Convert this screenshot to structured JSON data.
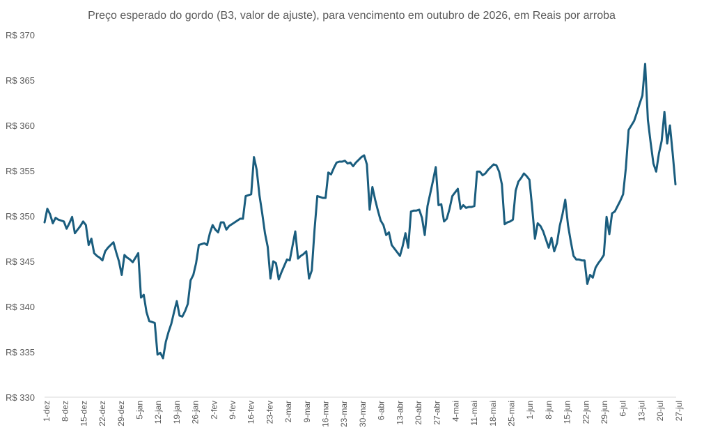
{
  "chart_data": {
    "type": "line",
    "title": "Preço esperado do gordo (B3, valor de ajuste), para vencimento em outubro de 2026, em Reais por arroba",
    "ylim": [
      330,
      370
    ],
    "grid": false,
    "legend": "none",
    "colors": {
      "line": "#1a5d7e",
      "axis": "#d9d9d9",
      "text": "#595959"
    },
    "y_tick_labels": [
      "R$ 330",
      "R$ 335",
      "R$ 340",
      "R$ 345",
      "R$ 350",
      "R$ 355",
      "R$ 360",
      "R$ 365",
      "R$ 370"
    ],
    "y_tick_values": [
      330,
      335,
      340,
      345,
      350,
      355,
      360,
      365,
      370
    ],
    "x_tick_labels": [
      "1-dez",
      "8-dez",
      "15-dez",
      "22-dez",
      "29-dez",
      "5-jan",
      "12-jan",
      "19-jan",
      "26-jan",
      "2-fev",
      "9-fev",
      "16-fev",
      "23-fev",
      "2-mar",
      "9-mar",
      "16-mar",
      "23-mar",
      "30-mar",
      "6-abr",
      "13-abr",
      "20-abr",
      "27-abr",
      "4-mai",
      "11-mai",
      "18-mai",
      "25-mai",
      "1-jun",
      "8-jun",
      "15-jun",
      "22-jun",
      "29-jun",
      "6-jul",
      "13-jul",
      "20-jul",
      "27-jul"
    ],
    "series": [
      {
        "values": [
          349.3,
          350.8,
          350.2,
          349.2,
          349.8,
          349.6,
          349.5,
          349.4,
          348.6,
          349.2,
          349.9,
          348.1,
          348.5,
          348.9,
          349.4,
          349.0,
          346.8,
          347.5,
          345.9,
          345.6,
          345.4,
          345.1,
          346.1,
          346.5,
          346.8,
          347.1,
          346.0,
          345.0,
          343.5,
          345.7,
          345.4,
          345.2,
          344.9,
          345.4,
          345.9,
          341.0,
          341.3,
          339.4,
          338.4,
          338.3,
          338.2,
          334.7,
          334.9,
          334.3,
          336.1,
          337.2,
          338.1,
          339.4,
          340.6,
          339.0,
          338.9,
          339.5,
          340.3,
          342.9,
          343.5,
          344.8,
          346.8,
          346.9,
          347.0,
          346.8,
          348.1,
          349.0,
          348.5,
          348.2,
          349.3,
          349.3,
          348.5,
          348.9,
          349.1,
          349.3,
          349.5,
          349.7,
          349.7,
          352.2,
          352.3,
          352.4,
          356.5,
          355.1,
          352.3,
          350.3,
          348.1,
          346.6,
          343.1,
          345.0,
          344.8,
          343.0,
          343.8,
          344.5,
          345.2,
          345.1,
          346.7,
          348.3,
          345.3,
          345.6,
          345.8,
          346.1,
          343.1,
          344.0,
          348.5,
          352.2,
          352.1,
          352.0,
          352.0,
          354.8,
          354.6,
          355.3,
          355.9,
          356.0,
          356.0,
          356.1,
          355.8,
          355.9,
          355.5,
          355.9,
          356.2,
          356.5,
          356.7,
          355.7,
          350.7,
          353.2,
          351.8,
          350.6,
          349.5,
          349.0,
          347.9,
          348.2,
          346.8,
          346.4,
          346.0,
          345.6,
          346.7,
          348.1,
          346.5,
          350.5,
          350.6,
          350.6,
          350.7,
          349.8,
          347.9,
          351.1,
          352.5,
          353.9,
          355.4,
          351.2,
          351.3,
          349.4,
          349.7,
          350.8,
          352.2,
          352.6,
          353.0,
          350.8,
          351.2,
          350.9,
          351.0,
          351.0,
          351.1,
          354.9,
          354.9,
          354.5,
          354.7,
          355.1,
          355.4,
          355.7,
          355.6,
          354.9,
          353.5,
          349.1,
          349.3,
          349.4,
          349.6,
          352.8,
          353.8,
          354.2,
          354.7,
          354.4,
          354.0,
          350.9,
          347.5,
          349.2,
          348.9,
          348.3,
          347.4,
          346.5,
          347.6,
          346.1,
          347.0,
          348.9,
          350.2,
          351.8,
          349.0,
          347.2,
          345.6,
          345.2,
          345.2,
          345.1,
          345.1,
          342.5,
          343.5,
          343.2,
          344.3,
          344.8,
          345.2,
          345.7,
          349.9,
          348.0,
          350.3,
          350.5,
          351.1,
          351.7,
          352.4,
          355.3,
          359.5,
          360.0,
          360.5,
          361.4,
          362.4,
          363.3,
          366.8,
          360.6,
          358.1,
          355.8,
          354.9,
          356.9,
          358.3,
          361.5,
          358.0,
          360.0,
          356.9,
          353.5
        ]
      }
    ]
  }
}
